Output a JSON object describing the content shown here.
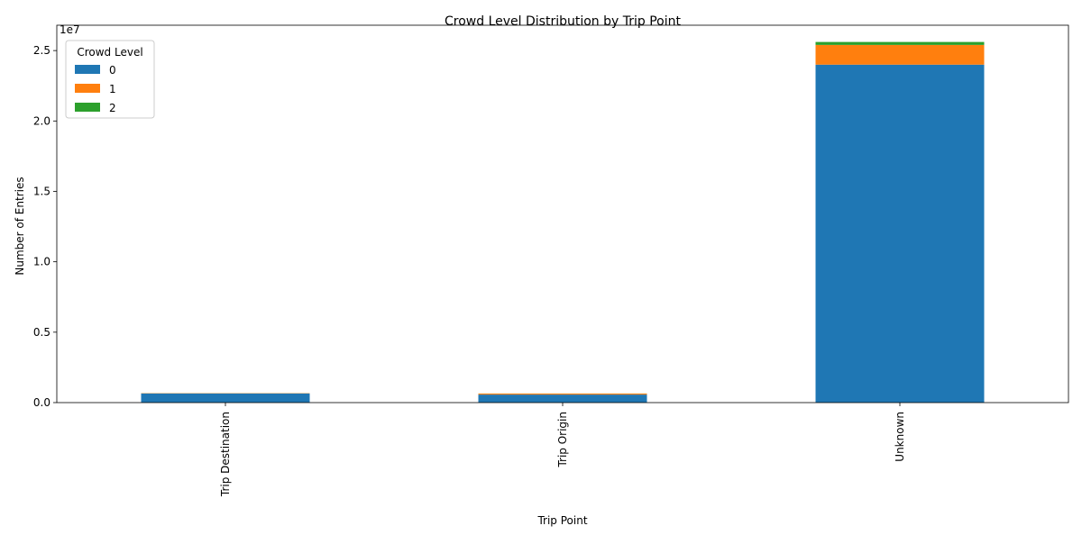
{
  "chart_data": {
    "type": "bar",
    "stacked": true,
    "title": "Crowd Level Distribution by Trip Point",
    "xlabel": "Trip Point",
    "ylabel": "Number of Entries",
    "y_offset_text": "1e7",
    "categories": [
      "Trip Destination",
      "Trip Origin",
      "Unknown"
    ],
    "series": [
      {
        "name": "0",
        "color": "#1f77b4",
        "values": [
          650000,
          570000,
          24000000
        ]
      },
      {
        "name": "1",
        "color": "#ff7f0e",
        "values": [
          20000,
          70000,
          1400000
        ]
      },
      {
        "name": "2",
        "color": "#2ca02c",
        "values": [
          3000,
          5000,
          210000
        ]
      }
    ],
    "ylim": [
      0,
      26800000
    ],
    "yticks": [
      0,
      5000000,
      10000000,
      15000000,
      20000000,
      25000000
    ],
    "ytick_labels": [
      "0.0",
      "0.5",
      "1.0",
      "1.5",
      "2.0",
      "2.5"
    ],
    "legend": {
      "title": "Crowd Level",
      "placement": "top-left"
    },
    "grid": false
  }
}
